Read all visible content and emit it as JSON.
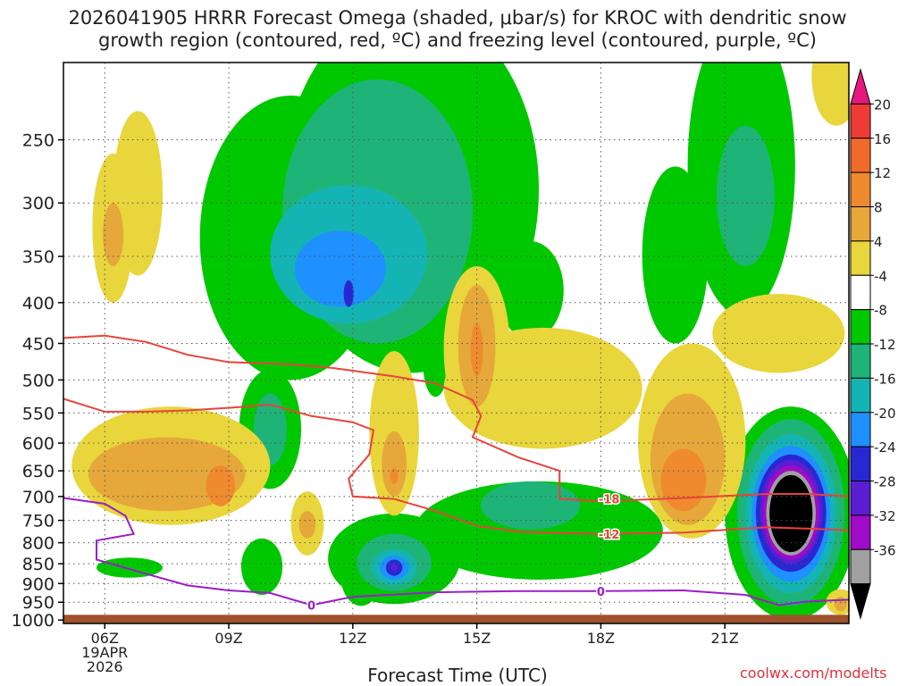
{
  "title_line1": "2026041905 HRRR Forecast Omega (shaded, μbar/s) for KROC with dendritic snow",
  "title_line2": "growth region (contoured, red, ºC) and freezing level (contoured, purple, ºC)",
  "credit": "coolwx.com/modelts",
  "colors": {
    "background": "#ffffff",
    "ground": "#a0522d",
    "dgz_contour": "#e8433a",
    "freezing_contour": "#9b1ec8",
    "grid": "#555555"
  },
  "chart_data": {
    "type": "heatmap",
    "title": "2026041905 HRRR Forecast Omega (shaded, μbar/s) for KROC with dendritic snow growth region (contoured, red, ºC) and freezing level (contoured, purple, ºC)",
    "xlabel": "Forecast Time (UTC)",
    "ylabel": "",
    "x_domain_hours": [
      5,
      24
    ],
    "x_ticks": [
      {
        "hour": 6,
        "label": "06Z",
        "sub": [
          "19APR",
          "2026"
        ]
      },
      {
        "hour": 9,
        "label": "09Z"
      },
      {
        "hour": 12,
        "label": "12Z"
      },
      {
        "hour": 15,
        "label": "15Z"
      },
      {
        "hour": 18,
        "label": "18Z"
      },
      {
        "hour": 21,
        "label": "21Z"
      }
    ],
    "y_domain_hpa": [
      200,
      1010
    ],
    "y_scale": "log",
    "y_ticks": [
      250,
      300,
      350,
      400,
      450,
      500,
      550,
      600,
      650,
      700,
      750,
      800,
      850,
      900,
      950,
      1000
    ],
    "grid": true,
    "surface_pressure_hpa": 985,
    "colorbar": {
      "labels": [
        20,
        16,
        12,
        8,
        4,
        -4,
        -8,
        -12,
        -16,
        -20,
        -24,
        -28,
        -32,
        -36
      ],
      "bins": [
        {
          "min": 20,
          "max": 24,
          "color": "#e8177f"
        },
        {
          "min": 16,
          "max": 20,
          "color": "#ee3b36"
        },
        {
          "min": 12,
          "max": 16,
          "color": "#f26a2a"
        },
        {
          "min": 8,
          "max": 12,
          "color": "#f08a2e"
        },
        {
          "min": 4,
          "max": 8,
          "color": "#e6a83a"
        },
        {
          "min": 0,
          "max": 4,
          "color": "#e8d63c"
        },
        {
          "min": -4,
          "max": 4,
          "color": "#ffffff"
        },
        {
          "min": -8,
          "max": -4,
          "color": "#00c800"
        },
        {
          "min": -12,
          "max": -8,
          "color": "#1eb478"
        },
        {
          "min": -16,
          "max": -12,
          "color": "#14b4b4"
        },
        {
          "min": -20,
          "max": -16,
          "color": "#1e90ff"
        },
        {
          "min": -24,
          "max": -20,
          "color": "#2828d2"
        },
        {
          "min": -28,
          "max": -24,
          "color": "#5a1ed2"
        },
        {
          "min": -32,
          "max": -28,
          "color": "#a00ac8"
        },
        {
          "min": -36,
          "max": -32,
          "color": "#a0a0a0"
        },
        {
          "min": -40,
          "max": -36,
          "color": "#000000"
        }
      ]
    },
    "omega_regions": [
      {
        "hour": 13.4,
        "p": 330,
        "dh": 3.1,
        "dp": 160,
        "value": -6,
        "color": "#00c800"
      },
      {
        "hour": 10.5,
        "p": 360,
        "dh": 2.2,
        "dp": 140,
        "value": -6,
        "color": "#00c800"
      },
      {
        "hour": 12.6,
        "p": 330,
        "dh": 2.3,
        "dp": 120,
        "value": -10,
        "color": "#1eb478"
      },
      {
        "hour": 11.9,
        "p": 355,
        "dh": 1.9,
        "dp": 70,
        "value": -14,
        "color": "#14b4b4"
      },
      {
        "hour": 11.7,
        "p": 365,
        "dh": 1.1,
        "dp": 40,
        "value": -18,
        "color": "#1e90ff"
      },
      {
        "hour": 11.9,
        "p": 390,
        "dh": 0.12,
        "dp": 15,
        "value": -22,
        "color": "#2828d2"
      },
      {
        "hour": 10.0,
        "p": 585,
        "dh": 0.75,
        "dp": 100,
        "value": -6,
        "color": "#00c800"
      },
      {
        "hour": 10.0,
        "p": 580,
        "dh": 0.4,
        "dp": 60,
        "value": -10,
        "color": "#1eb478"
      },
      {
        "hour": 14.0,
        "p": 480,
        "dh": 0.3,
        "dp": 45,
        "value": -6,
        "color": "#00c800"
      },
      {
        "hour": 13.0,
        "p": 845,
        "dh": 1.6,
        "dp": 110,
        "value": -6,
        "color": "#00c800"
      },
      {
        "hour": 16.5,
        "p": 780,
        "dh": 3.0,
        "dp": 110,
        "value": -6,
        "color": "#00c800"
      },
      {
        "hour": 12.2,
        "p": 880,
        "dh": 0.5,
        "dp": 80,
        "value": -6,
        "color": "#00c800"
      },
      {
        "hour": 13.0,
        "p": 850,
        "dh": 0.9,
        "dp": 70,
        "value": -10,
        "color": "#1eb478"
      },
      {
        "hour": 13.0,
        "p": 860,
        "dh": 0.55,
        "dp": 45,
        "value": -14,
        "color": "#14b4b4"
      },
      {
        "hour": 13.0,
        "p": 860,
        "dh": 0.35,
        "dp": 30,
        "value": -18,
        "color": "#1e90ff"
      },
      {
        "hour": 13.0,
        "p": 860,
        "dh": 0.2,
        "dp": 20,
        "value": -22,
        "color": "#2828d2"
      },
      {
        "hour": 13.0,
        "p": 860,
        "dh": 0.08,
        "dp": 10,
        "value": -26,
        "color": "#5a1ed2"
      },
      {
        "hour": 16.3,
        "p": 720,
        "dh": 1.2,
        "dp": 50,
        "value": -10,
        "color": "#1eb478"
      },
      {
        "hour": 9.8,
        "p": 860,
        "dh": 0.5,
        "dp": 70,
        "value": -6,
        "color": "#00c800"
      },
      {
        "hour": 6.6,
        "p": 860,
        "dh": 0.8,
        "dp": 25,
        "value": -6,
        "color": "#00c800"
      },
      {
        "hour": 16.3,
        "p": 390,
        "dh": 0.8,
        "dp": 55,
        "value": -6,
        "color": "#00c800"
      },
      {
        "hour": 19.8,
        "p": 360,
        "dh": 0.8,
        "dp": 90,
        "value": -6,
        "color": "#00c800"
      },
      {
        "hour": 21.4,
        "p": 295,
        "dh": 1.3,
        "dp": 120,
        "value": -6,
        "color": "#00c800"
      },
      {
        "hour": 21.5,
        "p": 300,
        "dh": 0.7,
        "dp": 60,
        "value": -10,
        "color": "#1eb478"
      },
      {
        "hour": 22.6,
        "p": 770,
        "dh": 1.6,
        "dp": 230,
        "value": -6,
        "color": "#00c800"
      },
      {
        "hour": 22.6,
        "p": 760,
        "dh": 1.3,
        "dp": 200,
        "value": -10,
        "color": "#1eb478"
      },
      {
        "hour": 22.6,
        "p": 755,
        "dh": 1.1,
        "dp": 170,
        "value": -14,
        "color": "#14b4b4"
      },
      {
        "hour": 22.6,
        "p": 750,
        "dh": 0.95,
        "dp": 145,
        "value": -18,
        "color": "#1e90ff"
      },
      {
        "hour": 22.6,
        "p": 745,
        "dh": 0.85,
        "dp": 125,
        "value": -22,
        "color": "#2828d2"
      },
      {
        "hour": 22.6,
        "p": 740,
        "dh": 0.75,
        "dp": 110,
        "value": -26,
        "color": "#5a1ed2"
      },
      {
        "hour": 22.6,
        "p": 740,
        "dh": 0.68,
        "dp": 100,
        "value": -30,
        "color": "#a00ac8"
      },
      {
        "hour": 22.6,
        "p": 740,
        "dh": 0.6,
        "dp": 90,
        "value": -34,
        "color": "#a0a0a0"
      },
      {
        "hour": 22.6,
        "p": 740,
        "dh": 0.52,
        "dp": 82,
        "value": -38,
        "color": "#000000"
      },
      {
        "hour": 6.2,
        "p": 330,
        "dh": 0.5,
        "dp": 70,
        "value": 2,
        "color": "#e8d63c"
      },
      {
        "hour": 6.8,
        "p": 300,
        "dh": 0.6,
        "dp": 70,
        "value": 2,
        "color": "#e8d63c"
      },
      {
        "hour": 6.2,
        "p": 330,
        "dh": 0.25,
        "dp": 30,
        "value": 6,
        "color": "#e6a83a"
      },
      {
        "hour": 7.6,
        "p": 650,
        "dh": 2.4,
        "dp": 110,
        "value": 2,
        "color": "#e8d63c"
      },
      {
        "hour": 7.5,
        "p": 660,
        "dh": 1.9,
        "dp": 70,
        "value": 6,
        "color": "#e6a83a"
      },
      {
        "hour": 8.8,
        "p": 680,
        "dh": 0.35,
        "dp": 40,
        "value": 10,
        "color": "#f08a2e"
      },
      {
        "hour": 10.9,
        "p": 760,
        "dh": 0.4,
        "dp": 70,
        "value": 2,
        "color": "#e8d63c"
      },
      {
        "hour": 10.9,
        "p": 760,
        "dh": 0.2,
        "dp": 30,
        "value": 6,
        "color": "#e6a83a"
      },
      {
        "hour": 13.0,
        "p": 600,
        "dh": 0.6,
        "dp": 140,
        "value": 2,
        "color": "#e8d63c"
      },
      {
        "hour": 13.0,
        "p": 640,
        "dh": 0.3,
        "dp": 60,
        "value": 6,
        "color": "#e6a83a"
      },
      {
        "hour": 13.0,
        "p": 660,
        "dh": 0.1,
        "dp": 15,
        "value": 10,
        "color": "#f08a2e"
      },
      {
        "hour": 16.6,
        "p": 520,
        "dh": 2.4,
        "dp": 90,
        "value": 2,
        "color": "#e8d63c"
      },
      {
        "hour": 15.0,
        "p": 470,
        "dh": 0.8,
        "dp": 110,
        "value": 2,
        "color": "#e8d63c"
      },
      {
        "hour": 15.0,
        "p": 460,
        "dh": 0.45,
        "dp": 80,
        "value": 6,
        "color": "#e6a83a"
      },
      {
        "hour": 15.0,
        "p": 460,
        "dh": 0.15,
        "dp": 35,
        "value": 10,
        "color": "#f08a2e"
      },
      {
        "hour": 20.2,
        "p": 620,
        "dh": 1.3,
        "dp": 170,
        "value": 2,
        "color": "#e8d63c"
      },
      {
        "hour": 20.1,
        "p": 640,
        "dh": 0.9,
        "dp": 120,
        "value": 6,
        "color": "#e6a83a"
      },
      {
        "hour": 20.0,
        "p": 670,
        "dh": 0.55,
        "dp": 60,
        "value": 10,
        "color": "#f08a2e"
      },
      {
        "hour": 22.3,
        "p": 440,
        "dh": 1.6,
        "dp": 50,
        "value": 2,
        "color": "#e8d63c"
      },
      {
        "hour": 23.7,
        "p": 210,
        "dh": 0.6,
        "dp": 30,
        "value": 2,
        "color": "#e8d63c"
      },
      {
        "hour": 23.8,
        "p": 950,
        "dh": 0.35,
        "dp": 35,
        "value": 2,
        "color": "#e8d63c"
      },
      {
        "hour": 23.8,
        "p": 955,
        "dh": 0.15,
        "dp": 20,
        "value": 6,
        "color": "#e6a83a"
      }
    ],
    "dgz_contours": [
      {
        "label": "-18",
        "label_at": {
          "hour": 18.2,
          "p": 705
        },
        "points": [
          [
            5,
            443
          ],
          [
            6,
            440
          ],
          [
            7,
            448
          ],
          [
            8,
            465
          ],
          [
            9,
            475
          ],
          [
            10.5,
            478
          ],
          [
            11.5,
            483
          ],
          [
            13,
            495
          ],
          [
            14,
            505
          ],
          [
            14.9,
            530
          ],
          [
            15.1,
            555
          ],
          [
            14.9,
            590
          ],
          [
            16,
            625
          ],
          [
            17,
            650
          ],
          [
            17,
            705
          ],
          [
            18,
            710
          ],
          [
            20,
            703
          ],
          [
            22,
            695
          ],
          [
            23,
            695
          ],
          [
            24,
            700
          ]
        ]
      },
      {
        "label": "-12",
        "label_at": {
          "hour": 18.2,
          "p": 780
        },
        "points": [
          [
            5,
            528
          ],
          [
            6,
            548
          ],
          [
            7,
            548
          ],
          [
            8,
            546
          ],
          [
            9,
            542
          ],
          [
            10,
            537
          ],
          [
            11,
            555
          ],
          [
            12,
            565
          ],
          [
            12.5,
            578
          ],
          [
            12.4,
            620
          ],
          [
            11.9,
            665
          ],
          [
            12,
            700
          ],
          [
            13,
            705
          ],
          [
            14,
            730
          ],
          [
            15,
            762
          ],
          [
            16,
            775
          ],
          [
            17,
            778
          ],
          [
            18,
            780
          ],
          [
            20,
            777
          ],
          [
            22,
            765
          ],
          [
            23,
            768
          ],
          [
            24,
            772
          ]
        ]
      }
    ],
    "freezing_contour": {
      "label": "0",
      "label_at": [
        {
          "hour": 11.0,
          "p": 958
        },
        {
          "hour": 18.0,
          "p": 920
        }
      ],
      "points": [
        [
          5,
          703
        ],
        [
          6,
          715
        ],
        [
          6.5,
          740
        ],
        [
          6.7,
          780
        ],
        [
          5.8,
          795
        ],
        [
          5.8,
          840
        ],
        [
          7,
          875
        ],
        [
          8,
          905
        ],
        [
          9,
          918
        ],
        [
          10,
          925
        ],
        [
          11,
          958
        ],
        [
          12,
          935
        ],
        [
          14,
          923
        ],
        [
          16,
          920
        ],
        [
          18,
          920
        ],
        [
          20,
          918
        ],
        [
          21.5,
          930
        ],
        [
          22.3,
          958
        ],
        [
          23,
          948
        ],
        [
          24,
          943
        ]
      ]
    }
  }
}
